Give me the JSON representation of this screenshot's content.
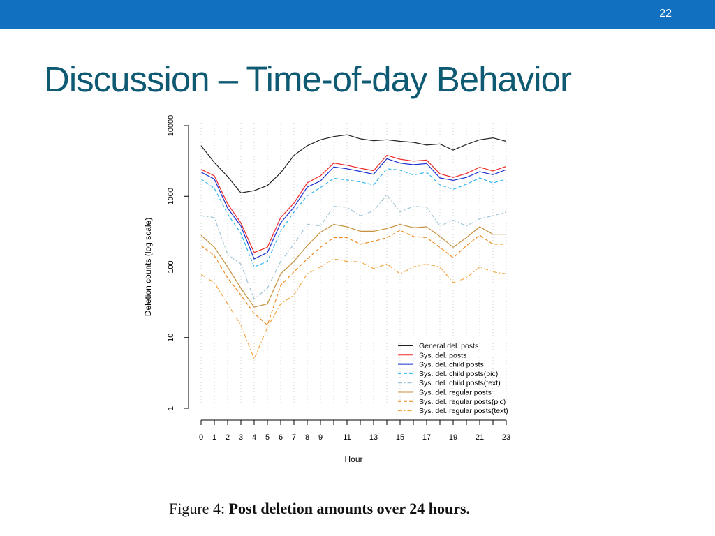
{
  "slide": {
    "number": "22",
    "title": "Discussion – Time-of-day Behavior",
    "caption_label": "Figure 4:",
    "caption_text": "Post deletion amounts over 24 hours.",
    "accent_color": "#1270c0",
    "title_color": "#0f5a73"
  },
  "chart_data": {
    "type": "line",
    "xlabel": "Hour",
    "ylabel": "Deletion counts (log scale)",
    "y_scale": "log",
    "ylim": [
      1,
      10000
    ],
    "xlim": [
      0,
      23
    ],
    "grid": "vertical dotted lines at each hour",
    "legend_position": "bottom-right",
    "x_tick_labels": [
      "0",
      "1",
      "2",
      "3",
      "4",
      "5",
      "6",
      "7",
      "8",
      "9",
      "11",
      "13",
      "15",
      "17",
      "19",
      "21",
      "23"
    ],
    "y_tick_labels": [
      "1",
      "10",
      "100",
      "1000",
      "10000"
    ],
    "x": [
      0,
      1,
      2,
      3,
      4,
      5,
      6,
      7,
      8,
      9,
      10,
      11,
      12,
      13,
      14,
      15,
      16,
      17,
      18,
      19,
      20,
      21,
      22,
      23
    ],
    "series": [
      {
        "name": "General del. posts",
        "color": "#222222",
        "dash": "solid",
        "values": [
          5200,
          3000,
          1900,
          1120,
          1200,
          1420,
          2150,
          3800,
          5200,
          6300,
          7000,
          7400,
          6500,
          6100,
          6300,
          6000,
          5800,
          5300,
          5500,
          4500,
          5400,
          6300,
          6700,
          6000
        ]
      },
      {
        "name": "Sys. del. posts",
        "color": "#ee2a2a",
        "dash": "solid",
        "values": [
          2400,
          1950,
          780,
          420,
          160,
          190,
          500,
          800,
          1550,
          1950,
          2950,
          2750,
          2500,
          2300,
          3800,
          3350,
          3150,
          3250,
          2080,
          1850,
          2100,
          2580,
          2280,
          2650
        ]
      },
      {
        "name": "Sys. del. child posts",
        "color": "#1a2fd1",
        "dash": "solid",
        "values": [
          2200,
          1750,
          680,
          380,
          130,
          160,
          420,
          700,
          1350,
          1650,
          2600,
          2450,
          2250,
          2050,
          3400,
          2950,
          2800,
          2900,
          1820,
          1680,
          1850,
          2230,
          2020,
          2380
        ]
      },
      {
        "name": "Sys. del. child posts(pic)",
        "color": "#2fb6ee",
        "dash": "dashed",
        "values": [
          1750,
          1300,
          560,
          300,
          100,
          120,
          320,
          600,
          1020,
          1330,
          1800,
          1700,
          1600,
          1450,
          2450,
          2350,
          2000,
          2200,
          1450,
          1250,
          1480,
          1820,
          1540,
          1750
        ]
      },
      {
        "name": "Sys. del. child posts(text)",
        "color": "#9ec3d6",
        "dash": "dashdot",
        "values": [
          530,
          500,
          150,
          110,
          35,
          50,
          120,
          210,
          400,
          380,
          720,
          700,
          530,
          620,
          1050,
          600,
          720,
          700,
          380,
          460,
          380,
          480,
          530,
          600
        ]
      },
      {
        "name": "Sys. del. regular posts",
        "color": "#c7913f",
        "dash": "solid",
        "values": [
          280,
          190,
          100,
          50,
          27,
          30,
          80,
          120,
          200,
          310,
          400,
          370,
          320,
          320,
          350,
          400,
          360,
          370,
          270,
          190,
          260,
          370,
          290,
          290
        ]
      },
      {
        "name": "Sys. del. regular posts(pic)",
        "color": "#f08a1e",
        "dash": "dashed",
        "values": [
          200,
          145,
          70,
          40,
          22,
          15,
          55,
          85,
          130,
          190,
          260,
          260,
          210,
          230,
          260,
          330,
          270,
          260,
          190,
          135,
          200,
          280,
          210,
          210
        ]
      },
      {
        "name": "Sys. del. regular posts(text)",
        "color": "#f4a640",
        "dash": "dashdot",
        "values": [
          78,
          60,
          30,
          15,
          5,
          14,
          30,
          40,
          80,
          100,
          130,
          120,
          118,
          95,
          110,
          80,
          100,
          110,
          100,
          60,
          70,
          100,
          85,
          80
        ]
      }
    ]
  }
}
